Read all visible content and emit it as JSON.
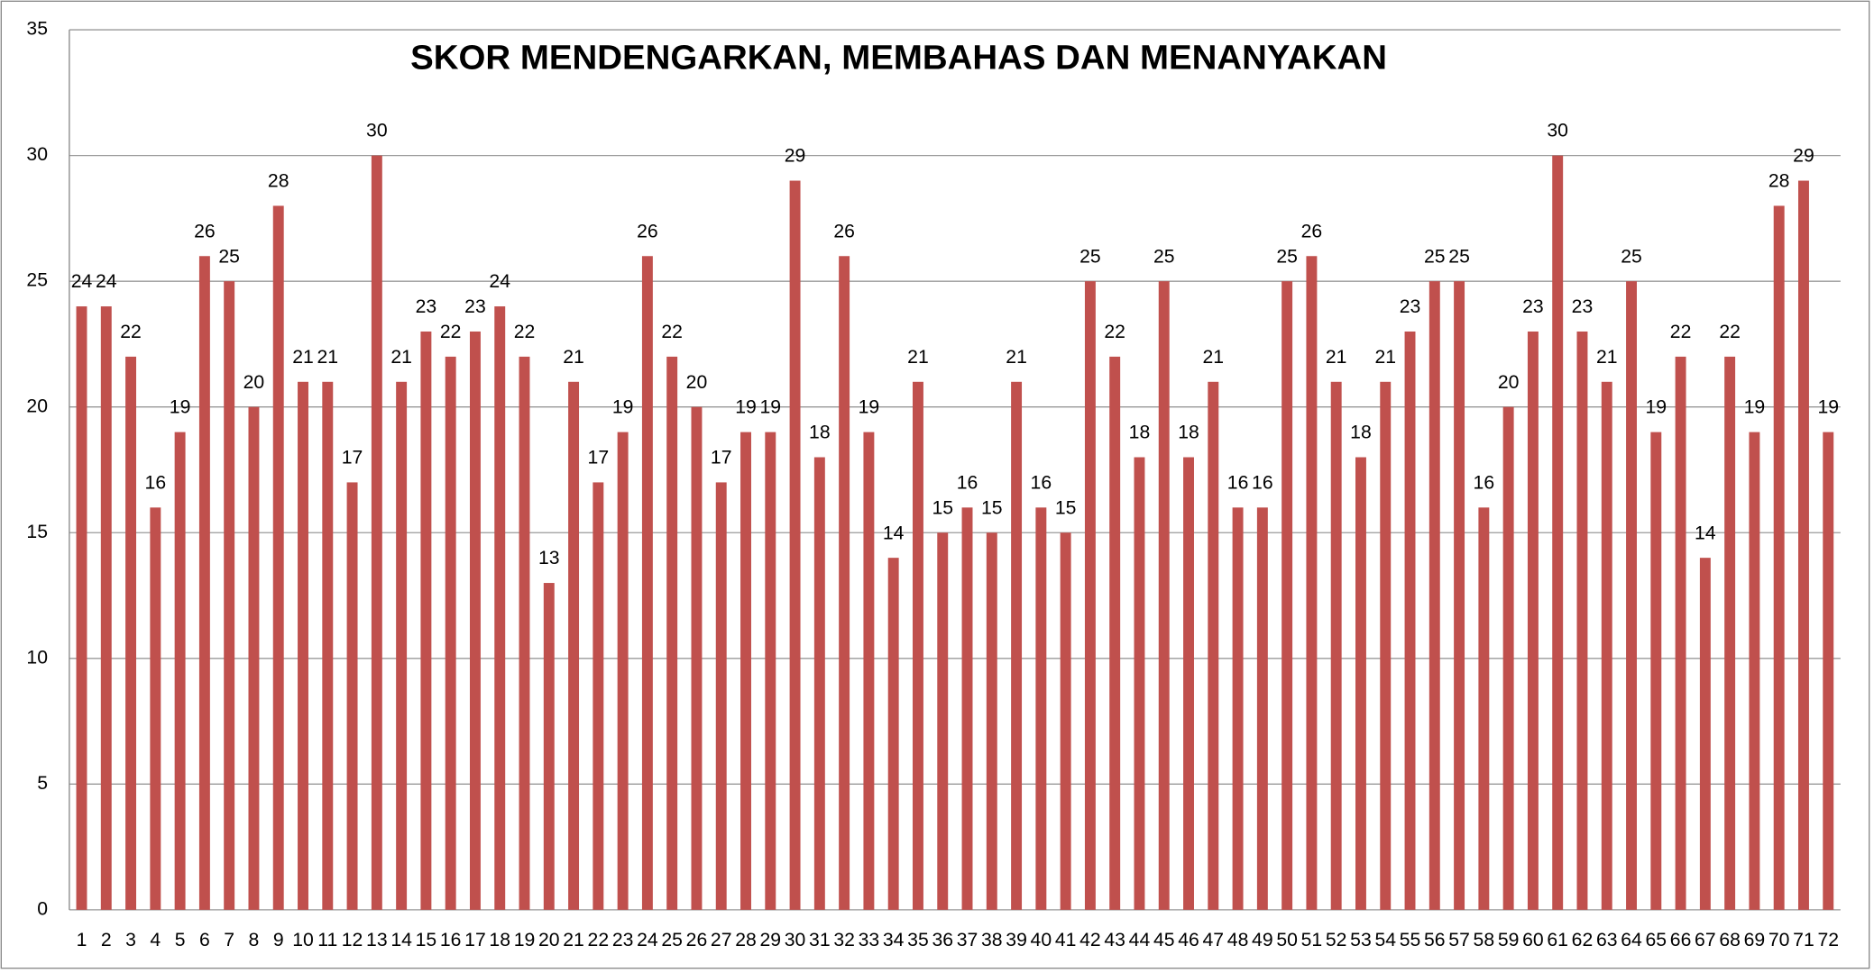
{
  "chart_data": {
    "type": "bar",
    "title": "SKOR MENDENGARKAN, MEMBAHAS DAN MENANYAKAN",
    "categories": [
      "1",
      "2",
      "3",
      "4",
      "5",
      "6",
      "7",
      "8",
      "9",
      "10",
      "11",
      "12",
      "13",
      "14",
      "15",
      "16",
      "17",
      "18",
      "19",
      "20",
      "21",
      "22",
      "23",
      "24",
      "25",
      "26",
      "27",
      "28",
      "29",
      "30",
      "31",
      "32",
      "33",
      "34",
      "35",
      "36",
      "37",
      "38",
      "39",
      "40",
      "41",
      "42",
      "43",
      "44",
      "45",
      "46",
      "47",
      "48",
      "49",
      "50",
      "51",
      "52",
      "53",
      "54",
      "55",
      "56",
      "57",
      "58",
      "59",
      "60",
      "61",
      "62",
      "63",
      "64",
      "65",
      "66",
      "67",
      "68",
      "69",
      "70",
      "71",
      "72"
    ],
    "values": [
      24,
      24,
      22,
      16,
      19,
      26,
      25,
      20,
      28,
      21,
      21,
      17,
      30,
      21,
      23,
      22,
      23,
      24,
      22,
      13,
      21,
      17,
      19,
      26,
      22,
      20,
      17,
      19,
      19,
      29,
      18,
      26,
      19,
      14,
      21,
      15,
      16,
      15,
      21,
      16,
      15,
      25,
      22,
      18,
      25,
      18,
      21,
      16,
      16,
      25,
      26,
      21,
      18,
      21,
      23,
      25,
      25,
      16,
      20,
      23,
      30,
      23,
      21,
      25,
      19,
      22,
      14,
      22,
      19,
      28,
      29,
      19
    ],
    "color": "#c0504d",
    "ylim": [
      0,
      35
    ],
    "yticks": [
      0,
      5,
      10,
      15,
      20,
      25,
      30,
      35
    ],
    "grid": true
  }
}
